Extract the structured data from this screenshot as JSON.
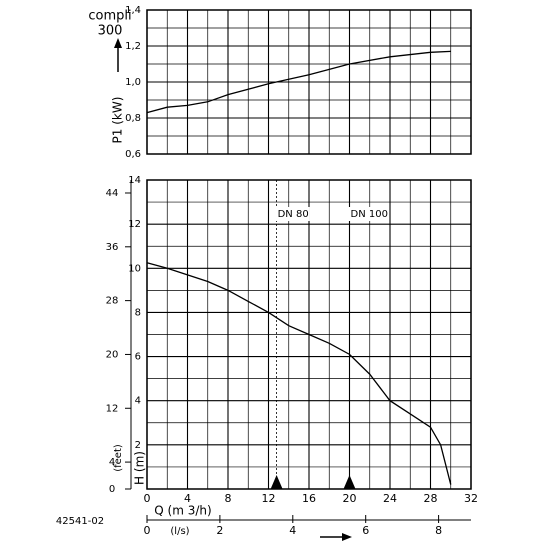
{
  "header": {
    "lines": [
      "compli",
      "300"
    ],
    "code": "42541-02"
  },
  "chart_data": [
    {
      "type": "line",
      "ylabel": "P1 (kW)",
      "xlim": [
        0,
        32
      ],
      "ylim": [
        0.6,
        1.4
      ],
      "yticks": [
        {
          "value": 0.6,
          "label": "0,6"
        },
        {
          "value": 0.8,
          "label": "0,8"
        },
        {
          "value": 1.0,
          "label": "1,0"
        },
        {
          "value": 1.2,
          "label": "1,2"
        },
        {
          "value": 1.4,
          "label": "1,4"
        }
      ],
      "xticks": [
        0,
        4,
        8,
        12,
        16,
        20,
        24,
        28,
        32
      ],
      "grid": true,
      "x": [
        0,
        2,
        4,
        6,
        8,
        12,
        16,
        20,
        24,
        28,
        30
      ],
      "series": [
        {
          "color": "#000000",
          "values": [
            0.83,
            0.86,
            0.87,
            0.89,
            0.93,
            0.99,
            1.04,
            1.1,
            1.14,
            1.165,
            1.17
          ]
        }
      ]
    },
    {
      "type": "line",
      "ylabel": "H (m)",
      "y2label": "(feet)",
      "xlabel": "Q (m 3/h)",
      "x2label": "(l/s)",
      "xlim": [
        0,
        32
      ],
      "xticks": [
        0,
        4,
        8,
        12,
        16,
        20,
        24,
        28,
        32
      ],
      "x2lim": [
        0,
        8.889
      ],
      "x2ticks": [
        0,
        2,
        4,
        6,
        8
      ],
      "ylim": [
        0,
        14
      ],
      "yticks": [
        2,
        4,
        6,
        8,
        10,
        12,
        14
      ],
      "y2lim": [
        0,
        45.93
      ],
      "y2ticks": [
        0,
        4,
        12,
        20,
        28,
        36,
        44
      ],
      "grid": true,
      "markers": [
        {
          "label": "DN 80",
          "x": 12.8
        },
        {
          "label": "DN 100",
          "x": 20
        }
      ],
      "x": [
        0,
        2,
        4,
        6,
        8,
        10,
        12,
        14,
        16,
        18,
        20,
        22,
        24,
        26,
        28,
        29,
        30
      ],
      "series": [
        {
          "color": "#000000",
          "values": [
            10.25,
            10.0,
            9.7,
            9.4,
            9.0,
            8.5,
            8.0,
            7.4,
            7.0,
            6.6,
            6.1,
            5.2,
            4.0,
            3.4,
            2.8,
            2.0,
            0.2
          ]
        }
      ]
    }
  ]
}
